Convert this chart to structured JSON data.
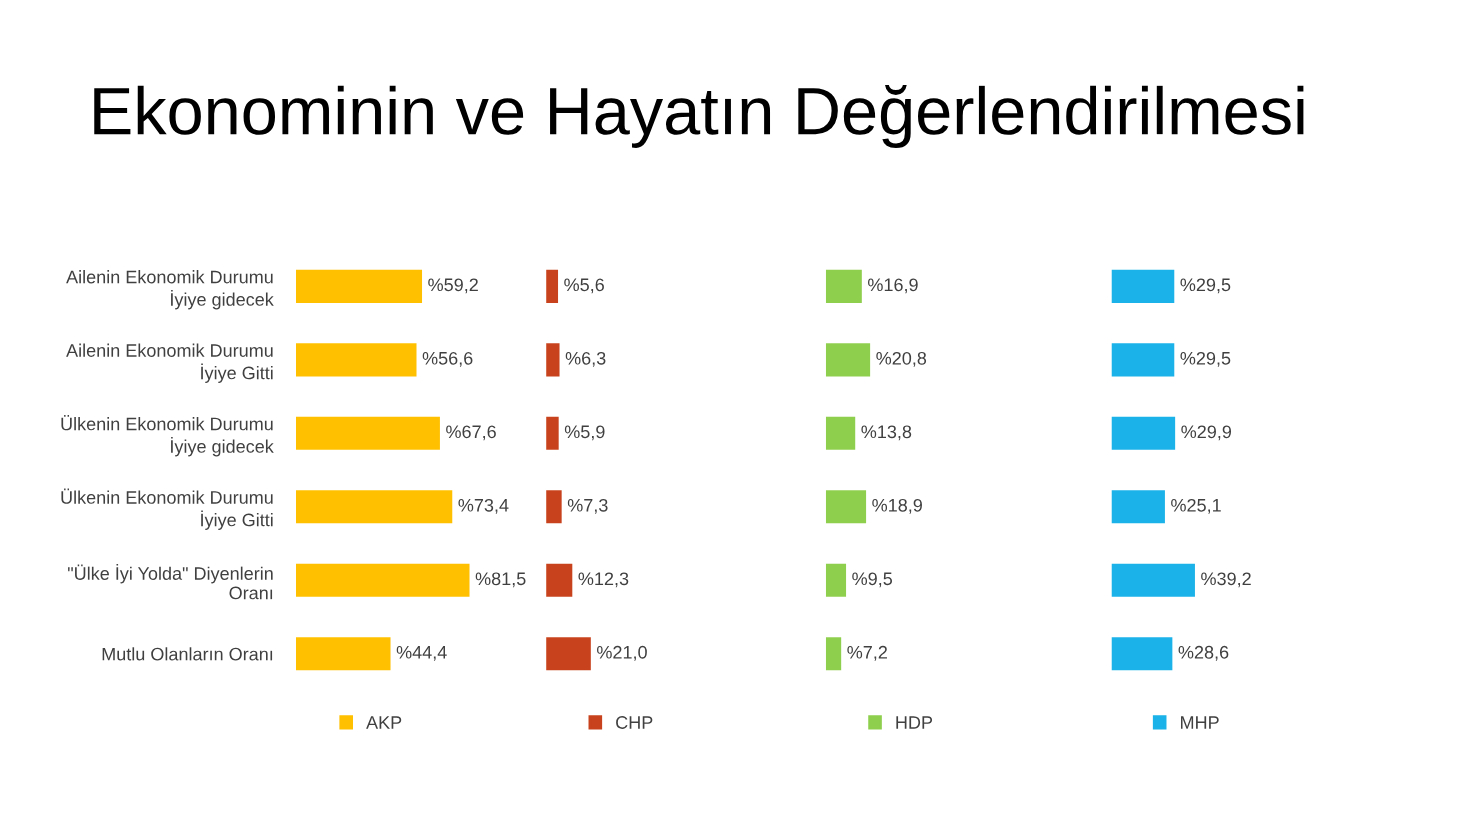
{
  "chart_data": [
    {
      "type": "bar",
      "orientation": "horizontal",
      "title": "Ekonominin ve Hayatın Değerlendirilmesi",
      "categories": [
        "Ailenin Ekonomik Durumu\nİyiye gidecek",
        "Ailenin Ekonomik Durumu\nİyiye Gitti",
        "Ülkenin Ekonomik Durumu\nİyiye gidecek",
        "Ülkenin Ekonomik Durumu\nİyiye Gitti",
        "\"Ülke İyi Yolda\" Diyenlerin\nOranı",
        "Mutlu Olanların Oranı"
      ],
      "tick_labels": "y",
      "legend": "bottom",
      "series": [
        {
          "name": "AKP",
          "color": "#ffc000",
          "values": [
            59.2,
            56.6,
            67.6,
            73.4,
            81.5,
            44.4
          ],
          "value_labels": [
            "%59,2",
            "%56,6",
            "%67,6",
            "%73,4",
            "%81,5",
            "%44,4"
          ]
        }
      ]
    },
    {
      "type": "bar",
      "orientation": "horizontal",
      "categories": [
        null,
        null,
        null,
        null,
        null,
        null
      ],
      "tick_labels": false,
      "legend": "bottom",
      "series": [
        {
          "name": "CHP",
          "color": "#c8431d",
          "values": [
            5.6,
            6.3,
            5.9,
            7.3,
            12.3,
            21.0
          ],
          "value_labels": [
            "%5,6",
            "%6,3",
            "%5,9",
            "%7,3",
            "%12,3",
            "%21,0"
          ]
        }
      ]
    },
    {
      "type": "bar",
      "orientation": "horizontal",
      "categories": [
        null,
        null,
        null,
        null,
        null,
        null
      ],
      "tick_labels": false,
      "legend": "bottom",
      "series": [
        {
          "name": "HDP",
          "color": "#8fcf4e",
          "values": [
            16.9,
            20.8,
            13.8,
            18.9,
            9.5,
            7.2
          ],
          "value_labels": [
            "%16,9",
            "%20,8",
            "%13,8",
            "%18,9",
            "%9,5",
            "%7,2"
          ]
        }
      ]
    },
    {
      "type": "bar",
      "orientation": "horizontal",
      "categories": [
        null,
        null,
        null,
        null,
        null,
        null
      ],
      "tick_labels": false,
      "legend": "bottom",
      "series": [
        {
          "name": "MHP",
          "color": "#1ab2e8",
          "values": [
            29.5,
            29.5,
            29.9,
            25.1,
            39.2,
            28.6
          ],
          "value_labels": [
            "%29,5",
            "%29,5",
            "%29,9",
            "%25,1",
            "%39,2",
            "%28,6"
          ]
        }
      ]
    }
  ]
}
